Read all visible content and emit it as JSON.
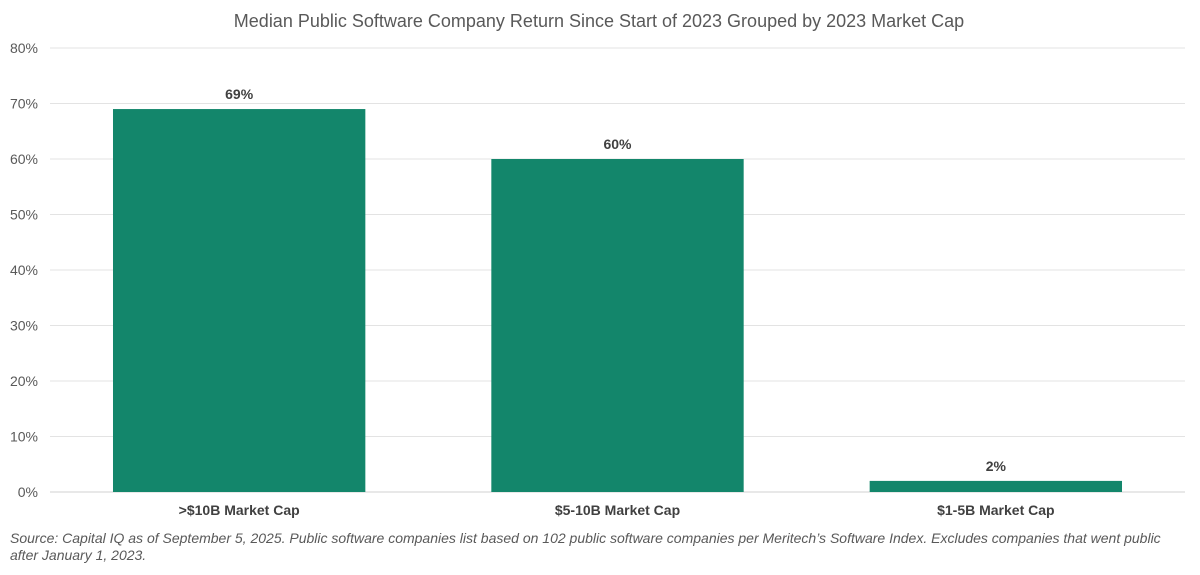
{
  "chart_data": {
    "type": "bar",
    "title": "Median Public Software Company Return Since Start of 2023 Grouped by 2023 Market Cap",
    "categories": [
      ">$10B Market Cap",
      "$5-10B Market Cap",
      "$1-5B Market Cap"
    ],
    "values": [
      69,
      60,
      2
    ],
    "data_labels": [
      "69%",
      "60%",
      "2%"
    ],
    "xlabel": "",
    "ylabel": "",
    "ylim": [
      0,
      80
    ],
    "yticks": [
      0,
      10,
      20,
      30,
      40,
      50,
      60,
      70,
      80
    ],
    "ytick_labels": [
      "0%",
      "10%",
      "20%",
      "30%",
      "40%",
      "50%",
      "60%",
      "70%",
      "80%"
    ],
    "grid": true,
    "legend": "none",
    "bar_color": "#13866b"
  },
  "footnote": "Source: Capital IQ as of September 5, 2025. Public software companies list based on 102 public software companies per Meritech’s Software Index. Excludes companies that went public after January 1, 2023."
}
